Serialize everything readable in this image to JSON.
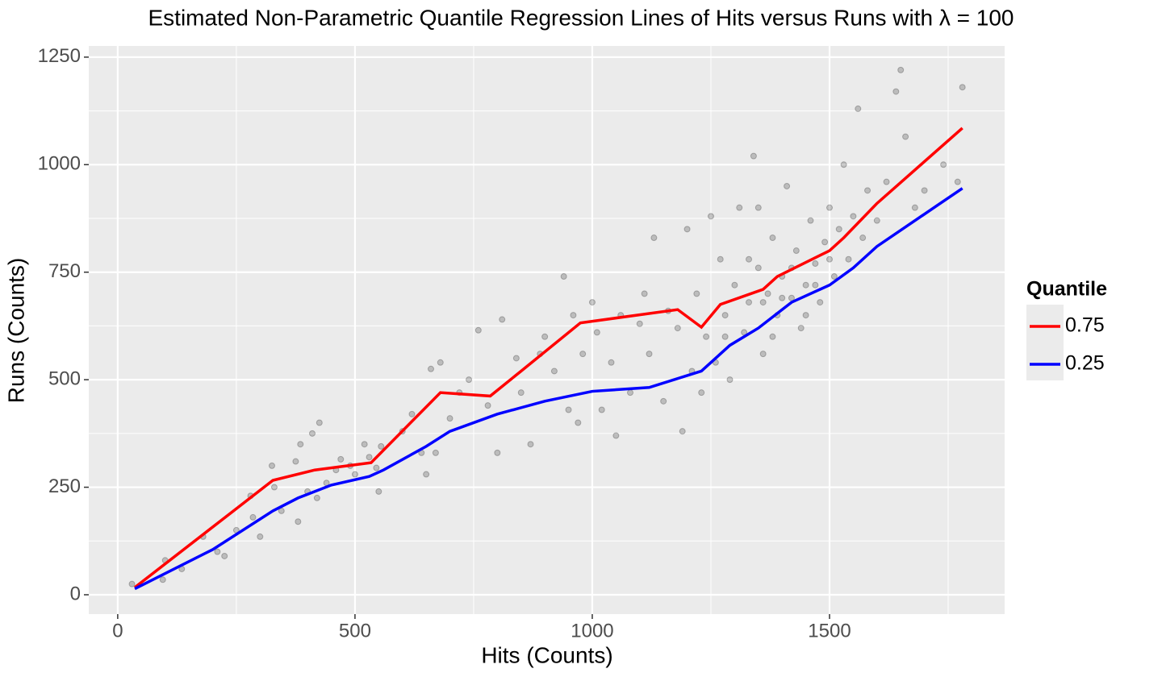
{
  "chart_data": {
    "type": "scatter",
    "title": "Estimated Non-Parametric Quantile Regression Lines of Hits versus Runs with λ = 100",
    "x_label": "Hits (Counts)",
    "y_label": "Runs (Counts)",
    "xlim": [
      -61,
      1869
    ],
    "ylim": [
      -45,
      1276
    ],
    "xticks": [
      0,
      500,
      1000,
      1500
    ],
    "yticks": [
      0,
      250,
      500,
      750,
      1000,
      1250
    ],
    "grid": true,
    "legend_title": "Quantile",
    "legend_position": "right",
    "points": {
      "color": "#000000",
      "x": [
        30,
        95,
        100,
        135,
        180,
        210,
        225,
        250,
        280,
        285,
        300,
        325,
        330,
        345,
        375,
        380,
        385,
        400,
        410,
        420,
        425,
        440,
        460,
        470,
        490,
        500,
        520,
        530,
        545,
        550,
        555,
        600,
        620,
        640,
        650,
        660,
        670,
        680,
        700,
        720,
        740,
        760,
        780,
        800,
        810,
        840,
        850,
        870,
        890,
        900,
        920,
        940,
        950,
        960,
        970,
        980,
        1000,
        1010,
        1020,
        1040,
        1050,
        1060,
        1080,
        1100,
        1110,
        1120,
        1130,
        1150,
        1160,
        1180,
        1190,
        1200,
        1210,
        1220,
        1230,
        1240,
        1250,
        1260,
        1270,
        1280,
        1290,
        1300,
        1310,
        1320,
        1330,
        1340,
        1350,
        1360,
        1370,
        1380,
        1390,
        1400,
        1410,
        1420,
        1430,
        1440,
        1450,
        1460,
        1470,
        1480,
        1490,
        1500,
        1510,
        1520,
        1530,
        1540,
        1550,
        1560,
        1570,
        1580,
        1600,
        1620,
        1640,
        1650,
        1660,
        1680,
        1700,
        1740,
        1770,
        1780,
        1350,
        1420,
        1380,
        1450,
        1330,
        1400,
        1470,
        1500,
        1280,
        1360
      ],
      "y": [
        25,
        35,
        80,
        60,
        135,
        100,
        90,
        150,
        230,
        180,
        135,
        300,
        250,
        195,
        310,
        170,
        350,
        240,
        375,
        225,
        400,
        260,
        290,
        315,
        300,
        280,
        350,
        320,
        295,
        240,
        345,
        380,
        420,
        330,
        280,
        525,
        330,
        540,
        410,
        470,
        500,
        615,
        440,
        330,
        640,
        550,
        470,
        350,
        560,
        600,
        520,
        740,
        430,
        650,
        400,
        560,
        680,
        610,
        430,
        540,
        370,
        650,
        470,
        630,
        700,
        560,
        830,
        450,
        660,
        620,
        380,
        850,
        520,
        700,
        470,
        600,
        880,
        540,
        780,
        650,
        500,
        720,
        900,
        610,
        680,
        1020,
        760,
        560,
        700,
        830,
        650,
        740,
        950,
        690,
        800,
        620,
        720,
        870,
        770,
        680,
        820,
        900,
        740,
        850,
        1000,
        780,
        880,
        1130,
        830,
        940,
        870,
        960,
        1170,
        1220,
        1065,
        900,
        940,
        1000,
        960,
        1180,
        900,
        760,
        600,
        650,
        780,
        690,
        720,
        780,
        600,
        680
      ]
    },
    "series": [
      {
        "name": "0.75",
        "color": "#ff0000",
        "x": [
          36,
          327,
          415,
          534,
          680,
          785,
          850,
          975,
          1180,
          1230,
          1270,
          1360,
          1390,
          1500,
          1530,
          1600,
          1780
        ],
        "values": [
          17,
          266,
          290,
          307,
          470,
          462,
          520,
          632,
          663,
          622,
          675,
          710,
          740,
          800,
          830,
          910,
          1085
        ]
      },
      {
        "name": "0.25",
        "color": "#0000ff",
        "x": [
          36,
          200,
          327,
          380,
          450,
          530,
          560,
          650,
          700,
          800,
          900,
          1000,
          1120,
          1230,
          1290,
          1350,
          1420,
          1500,
          1550,
          1600,
          1780
        ],
        "values": [
          14,
          105,
          195,
          225,
          255,
          275,
          290,
          345,
          380,
          420,
          450,
          473,
          482,
          520,
          580,
          620,
          680,
          720,
          760,
          810,
          945
        ]
      }
    ]
  }
}
